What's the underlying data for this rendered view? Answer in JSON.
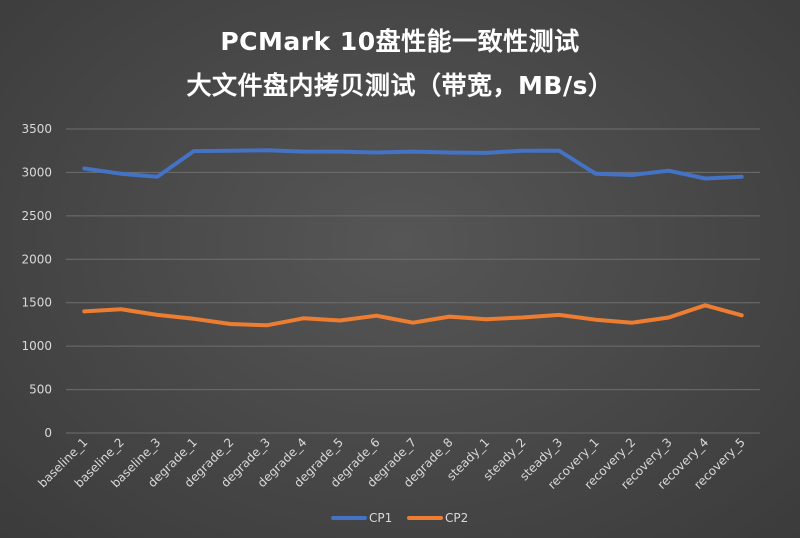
{
  "chart_data": {
    "type": "line",
    "title": "PCMark 10盘性能一致性测试",
    "subtitle": "大文件盘内拷贝测试（带宽，MB/s）",
    "xlabel": "",
    "ylabel": "",
    "ylim": [
      0,
      3500
    ],
    "yticks": [
      0,
      500,
      1000,
      1500,
      2000,
      2500,
      3000,
      3500
    ],
    "grid": true,
    "legend_position": "bottom",
    "categories": [
      "baseline_1",
      "baseline_2",
      "baseline_3",
      "degrade_1",
      "degrade_2",
      "degrade_3",
      "degrade_4",
      "degrade_5",
      "degrade_6",
      "degrade_7",
      "degrade_8",
      "steady_1",
      "steady_2",
      "steady_3",
      "recovery_1",
      "recovery_2",
      "recovery_3",
      "recovery_4",
      "recovery_5"
    ],
    "series": [
      {
        "name": "CP1",
        "color": "#4472c4",
        "values": [
          3045,
          2985,
          2950,
          3245,
          3250,
          3255,
          3240,
          3240,
          3230,
          3240,
          3230,
          3225,
          3250,
          3250,
          2985,
          2970,
          3020,
          2930,
          2950
        ]
      },
      {
        "name": "CP2",
        "color": "#ed7d31",
        "values": [
          1400,
          1425,
          1360,
          1315,
          1255,
          1240,
          1320,
          1295,
          1350,
          1270,
          1340,
          1310,
          1330,
          1360,
          1305,
          1270,
          1330,
          1470,
          1355
        ]
      }
    ]
  }
}
